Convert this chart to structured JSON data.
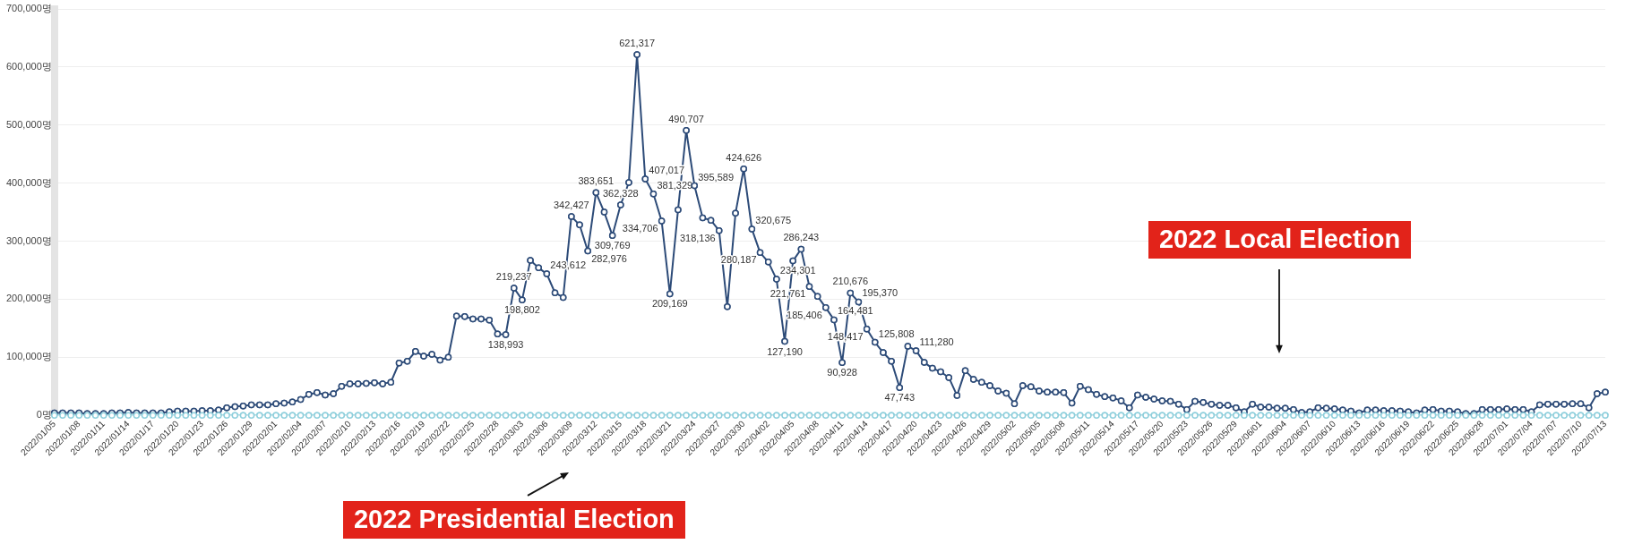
{
  "chart_data": {
    "type": "line",
    "categories": [
      "2022/01/05",
      null,
      null,
      "2022/01/08",
      null,
      null,
      "2022/01/11",
      null,
      null,
      "2022/01/14",
      null,
      null,
      "2022/01/17",
      null,
      null,
      "2022/01/20",
      null,
      null,
      "2022/01/23",
      null,
      null,
      "2022/01/26",
      null,
      null,
      "2022/01/29",
      null,
      null,
      "2022/02/01",
      null,
      null,
      "2022/02/04",
      null,
      null,
      "2022/02/07",
      null,
      null,
      "2022/02/10",
      null,
      null,
      "2022/02/13",
      null,
      null,
      "2022/02/16",
      null,
      null,
      "2022/02/19",
      null,
      null,
      "2022/02/22",
      null,
      null,
      "2022/02/25",
      null,
      null,
      "2022/02/28",
      null,
      null,
      "2022/03/03",
      null,
      null,
      "2022/03/06",
      null,
      null,
      "2022/03/09",
      null,
      null,
      "2022/03/12",
      null,
      null,
      "2022/03/15",
      null,
      null,
      "2022/03/18",
      null,
      null,
      "2022/03/21",
      null,
      null,
      "2022/03/24",
      null,
      null,
      "2022/03/27",
      null,
      null,
      "2022/03/30",
      null,
      null,
      "2022/04/02",
      null,
      null,
      "2022/04/05",
      null,
      null,
      "2022/04/08",
      null,
      null,
      "2022/04/11",
      null,
      null,
      "2022/04/14",
      null,
      null,
      "2022/04/17",
      null,
      null,
      "2022/04/20",
      null,
      null,
      "2022/04/23",
      null,
      null,
      "2022/04/26",
      null,
      null,
      "2022/04/29",
      null,
      null,
      "2022/05/02",
      null,
      null,
      "2022/05/05",
      null,
      null,
      "2022/05/08",
      null,
      null,
      "2022/05/11",
      null,
      null,
      "2022/05/14",
      null,
      null,
      "2022/05/17",
      null,
      null,
      "2022/05/20",
      null,
      null,
      "2022/05/23",
      null,
      null,
      "2022/05/26",
      null,
      null,
      "2022/05/29",
      null,
      null,
      "2022/06/01",
      null,
      null,
      "2022/06/04",
      null,
      null,
      "2022/06/07",
      null,
      null,
      "2022/06/10",
      null,
      null,
      "2022/06/13",
      null,
      null,
      "2022/06/16",
      null,
      null,
      "2022/06/19",
      null,
      null,
      "2022/06/22",
      null,
      null,
      "2022/06/25",
      null,
      null,
      "2022/06/28",
      null,
      null,
      "2022/07/01",
      null,
      null,
      "2022/07/04",
      null,
      null,
      "2022/07/07",
      null,
      null,
      "2022/07/10",
      null,
      null,
      "2022/07/13"
    ],
    "series": [
      {
        "color": "#2d4b78",
        "values": [
          4000,
          4000,
          4000,
          4000,
          3000,
          3000,
          3000,
          4000,
          4000,
          5000,
          4000,
          4000,
          4000,
          4000,
          6000,
          7000,
          7000,
          7000,
          8000,
          8000,
          9000,
          13000,
          15000,
          16000,
          18000,
          18000,
          18000,
          20000,
          21000,
          23000,
          27000,
          36000,
          39000,
          35000,
          37000,
          50000,
          54000,
          54000,
          55000,
          56000,
          54000,
          57000,
          90000,
          93000,
          110000,
          102000,
          105000,
          95000,
          100000,
          171000,
          170000,
          166000,
          166000,
          164000,
          140000,
          138993,
          219237,
          198802,
          267000,
          254000,
          243612,
          211000,
          203000,
          342427,
          328000,
          282976,
          383651,
          350000,
          309769,
          362328,
          401000,
          621317,
          407017,
          381329,
          334706,
          209169,
          354000,
          490707,
          395589,
          340000,
          336000,
          318136,
          187000,
          348000,
          424626,
          320675,
          280187,
          264000,
          234301,
          127190,
          266000,
          286243,
          221761,
          205000,
          185406,
          164481,
          90928,
          210676,
          195370,
          148417,
          125808,
          108000,
          93000,
          47743,
          119000,
          111280,
          91000,
          81000,
          75000,
          65000,
          34000,
          77000,
          62000,
          57000,
          51000,
          42000,
          38000,
          20000,
          51000,
          49000,
          42000,
          40000,
          40000,
          39000,
          21000,
          50000,
          44000,
          36000,
          32000,
          30000,
          25000,
          13000,
          35000,
          31000,
          28000,
          25000,
          24000,
          19000,
          10000,
          24000,
          22000,
          19000,
          17000,
          17000,
          13000,
          6000,
          19000,
          14000,
          14000,
          12000,
          12000,
          10000,
          5000,
          6000,
          13000,
          12000,
          11000,
          9000,
          7000,
          4000,
          9000,
          9000,
          8000,
          8000,
          7000,
          6000,
          4000,
          9000,
          10000,
          7000,
          7000,
          6000,
          3000,
          3000,
          10000,
          10000,
          10000,
          11000,
          10000,
          10000,
          6000,
          18000,
          19000,
          19000,
          19000,
          20000,
          20000,
          13000,
          37000,
          40000
        ],
        "value_labels": [
          null,
          null,
          null,
          null,
          null,
          null,
          null,
          null,
          null,
          null,
          null,
          null,
          null,
          null,
          null,
          null,
          null,
          null,
          null,
          null,
          null,
          null,
          null,
          null,
          null,
          null,
          null,
          null,
          null,
          null,
          null,
          null,
          null,
          null,
          null,
          null,
          null,
          null,
          null,
          null,
          null,
          null,
          null,
          null,
          null,
          null,
          null,
          null,
          null,
          null,
          null,
          null,
          null,
          null,
          null,
          "138,993",
          "219,237",
          "198,802",
          null,
          null,
          "243,612",
          null,
          null,
          "342,427",
          null,
          "282,976",
          "383,651",
          null,
          "309,769",
          "362,328",
          null,
          "621,317",
          "407,017",
          "381,329",
          "334,706",
          "209,169",
          null,
          "490,707",
          "395,589",
          null,
          null,
          "318,136",
          null,
          null,
          "424,626",
          "320,675",
          "280,187",
          null,
          "234,301",
          "127,190",
          null,
          "286,243",
          "221,761",
          null,
          "185,406",
          "164,481",
          "90,928",
          "210,676",
          "195,370",
          "148,417",
          "125,808",
          null,
          null,
          "47,743",
          null,
          "111,280",
          null,
          null,
          null,
          null,
          null,
          null,
          null,
          null,
          null,
          null,
          null,
          null,
          null,
          null,
          null,
          null,
          null,
          null,
          null,
          null,
          null,
          null,
          null,
          null,
          null,
          null,
          null,
          null,
          null,
          null,
          null,
          null,
          null,
          null,
          null,
          null,
          null,
          null,
          null,
          null,
          null,
          null,
          null,
          null,
          null,
          null,
          null,
          null,
          null,
          null,
          null,
          null,
          null,
          null,
          null,
          null,
          null,
          null,
          null,
          null,
          null,
          null,
          null,
          null,
          null,
          null,
          null,
          null,
          null,
          null,
          null,
          null,
          null,
          null,
          null,
          null,
          null,
          null,
          null,
          null,
          null,
          null,
          null,
          null
        ]
      },
      {
        "color": "#8ecfdc",
        "values": [
          0,
          0,
          0,
          0,
          0,
          0,
          0,
          0,
          0,
          0,
          0,
          0,
          0,
          0,
          0,
          0,
          0,
          0,
          0,
          0,
          0,
          0,
          0,
          0,
          0,
          0,
          0,
          0,
          0,
          0,
          0,
          0,
          0,
          0,
          0,
          0,
          0,
          0,
          0,
          0,
          0,
          0,
          0,
          0,
          0,
          0,
          0,
          0,
          0,
          0,
          0,
          0,
          0,
          0,
          0,
          0,
          0,
          0,
          0,
          0,
          0,
          0,
          0,
          0,
          0,
          0,
          0,
          0,
          0,
          0,
          0,
          0,
          0,
          0,
          0,
          0,
          0,
          0,
          0,
          0,
          0,
          0,
          0,
          0,
          0,
          0,
          0,
          0,
          0,
          0,
          0,
          0,
          0,
          0,
          0,
          0,
          0,
          0,
          0,
          0,
          0,
          0,
          0,
          0,
          0,
          0,
          0,
          0,
          0,
          0,
          0,
          0,
          0,
          0,
          0,
          0,
          0,
          0,
          0,
          0,
          0,
          0,
          0,
          0,
          0,
          0,
          0,
          0,
          0,
          0,
          0,
          0,
          0,
          0,
          0,
          0,
          0,
          0,
          0,
          0,
          0,
          0,
          0,
          0,
          0,
          0,
          0,
          0,
          0,
          0,
          0,
          0,
          0,
          0,
          0,
          0,
          0,
          0,
          0,
          0,
          0,
          0,
          0,
          0,
          0,
          0,
          0,
          0,
          0,
          0,
          0,
          0,
          0,
          0,
          0,
          0,
          0,
          0,
          0,
          0,
          0,
          0,
          0,
          0,
          0,
          0,
          0,
          0,
          0,
          0
        ]
      }
    ],
    "ylim": [
      0,
      700000
    ],
    "yticks": [
      {
        "value": 0,
        "label": "0명"
      },
      {
        "value": 100000,
        "label": "100,000명"
      },
      {
        "value": 200000,
        "label": "200,000명"
      },
      {
        "value": 300000,
        "label": "300,000명"
      },
      {
        "value": 400000,
        "label": "400,000명"
      },
      {
        "value": 500000,
        "label": "500,000명"
      },
      {
        "value": 600000,
        "label": "600,000명"
      },
      {
        "value": 700000,
        "label": "700,000명"
      }
    ],
    "grid": "y",
    "marker": "circle",
    "line_style": "solid",
    "annotations": [
      "2022 Presidential Election",
      "2022 Local Election"
    ]
  }
}
